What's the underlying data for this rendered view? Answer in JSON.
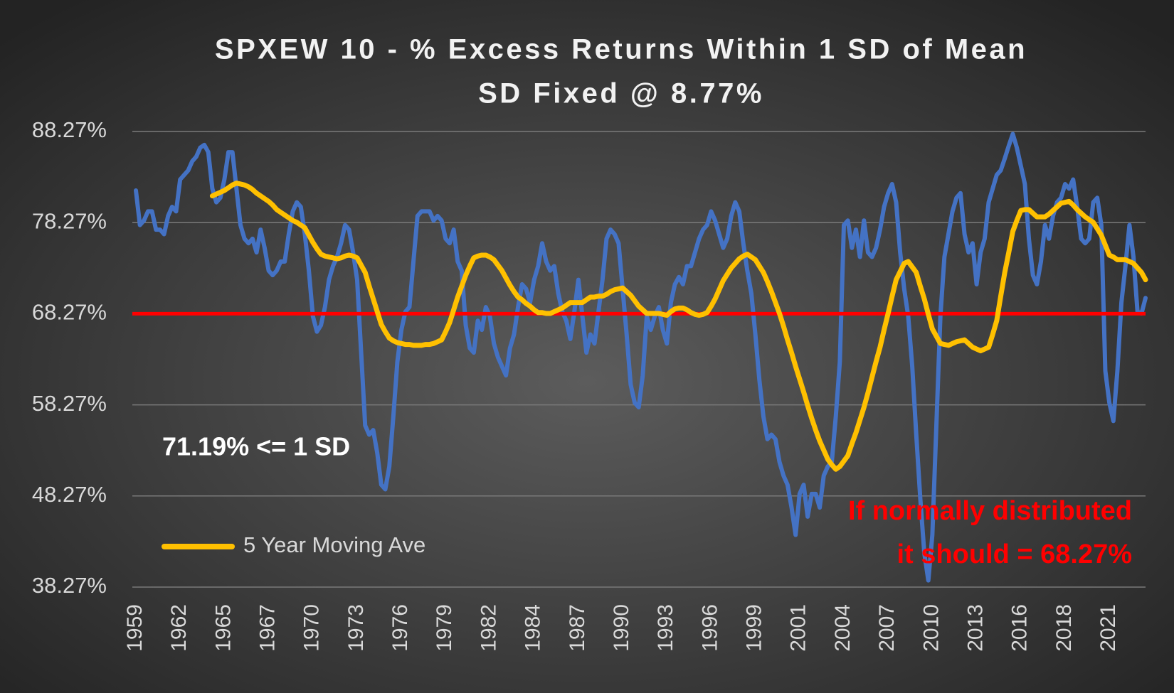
{
  "chart_data": {
    "type": "line",
    "title": "SPXEW 10 - % Excess Returns Within 1 SD of Mean",
    "subtitle": "SD Fixed @ 8.77%",
    "categories": [
      "1959",
      null,
      null,
      null,
      null,
      null,
      null,
      null,
      null,
      null,
      null,
      "1962",
      null,
      null,
      null,
      null,
      null,
      null,
      null,
      null,
      null,
      null,
      "1965",
      null,
      null,
      null,
      null,
      null,
      null,
      null,
      null,
      null,
      null,
      "1967",
      null,
      null,
      null,
      null,
      null,
      null,
      null,
      null,
      null,
      null,
      "1970",
      null,
      null,
      null,
      null,
      null,
      null,
      null,
      null,
      null,
      null,
      "1973",
      null,
      null,
      null,
      null,
      null,
      null,
      null,
      null,
      null,
      null,
      "1976",
      null,
      null,
      null,
      null,
      null,
      null,
      null,
      null,
      null,
      null,
      "1979",
      null,
      null,
      null,
      null,
      null,
      null,
      null,
      null,
      null,
      null,
      "1982",
      null,
      null,
      null,
      null,
      null,
      null,
      null,
      null,
      null,
      null,
      "1984",
      null,
      null,
      null,
      null,
      null,
      null,
      null,
      null,
      null,
      null,
      "1987",
      null,
      null,
      null,
      null,
      null,
      null,
      null,
      null,
      null,
      null,
      "1990",
      null,
      null,
      null,
      null,
      null,
      null,
      null,
      null,
      null,
      null,
      "1993",
      null,
      null,
      null,
      null,
      null,
      null,
      null,
      null,
      null,
      null,
      "1996",
      null,
      null,
      null,
      null,
      null,
      null,
      null,
      null,
      null,
      null,
      "1999",
      null,
      null,
      null,
      null,
      null,
      null,
      null,
      null,
      null,
      null,
      "2001",
      null,
      null,
      null,
      null,
      null,
      null,
      null,
      null,
      null,
      null,
      "2004",
      null,
      null,
      null,
      null,
      null,
      null,
      null,
      null,
      null,
      null,
      "2007",
      null,
      null,
      null,
      null,
      null,
      null,
      null,
      null,
      null,
      null,
      "2010",
      null,
      null,
      null,
      null,
      null,
      null,
      null,
      null,
      null,
      null,
      "2013",
      null,
      null,
      null,
      null,
      null,
      null,
      null,
      null,
      null,
      null,
      "2016",
      null,
      null,
      null,
      null,
      null,
      null,
      null,
      null,
      null,
      null,
      "2018",
      null,
      null,
      null,
      null,
      null,
      null,
      null,
      null,
      null,
      null,
      "2021",
      null,
      null,
      null,
      null,
      null,
      null,
      null,
      null,
      null
    ],
    "series": [
      {
        "color": "#4472c4",
        "values": [
          81.8,
          78,
          78.5,
          79.5,
          79.5,
          77.5,
          77.5,
          77,
          79,
          80,
          79.5,
          83,
          83.5,
          84,
          85,
          85.5,
          86.5,
          86.8,
          86,
          82,
          80.5,
          81,
          83,
          86,
          86,
          82,
          78,
          76.5,
          76,
          76.5,
          75,
          77.5,
          75.5,
          73,
          72.5,
          73,
          74,
          74,
          77,
          79.5,
          80.5,
          80,
          77,
          73,
          68,
          66.3,
          67,
          69,
          72,
          73.5,
          74.5,
          76,
          78,
          77.5,
          75,
          72,
          64,
          56,
          55,
          55.5,
          53,
          49.5,
          49,
          51.5,
          57,
          63,
          66.5,
          68.5,
          69,
          74,
          79,
          79.5,
          79.5,
          79.5,
          78.5,
          79,
          78.5,
          76.5,
          76,
          77.5,
          74,
          73,
          67,
          64.5,
          64,
          67.5,
          66.5,
          69,
          68,
          65,
          63.5,
          62.5,
          61.5,
          64.5,
          66,
          69,
          71.5,
          71,
          69.5,
          72,
          73.5,
          76,
          74,
          73,
          73.5,
          70.5,
          68.5,
          67.5,
          65.5,
          68.5,
          72,
          68,
          64,
          66,
          65,
          68.5,
          72,
          76.5,
          77.5,
          77,
          76,
          71,
          66,
          60.5,
          58.5,
          58,
          61.5,
          68,
          66.5,
          68,
          69,
          66.5,
          65,
          69.5,
          71.5,
          72.3,
          71.5,
          73.5,
          73.5,
          75,
          76.5,
          77.5,
          78,
          79.5,
          78.5,
          77,
          75.5,
          76.5,
          79,
          80.5,
          79.5,
          76,
          73,
          70.5,
          66,
          61,
          57,
          54.5,
          55,
          54.5,
          52,
          50.5,
          49.5,
          47,
          44,
          48.5,
          49.5,
          46,
          48.5,
          48.5,
          47,
          50.5,
          51.5,
          52,
          57,
          63,
          78,
          78.5,
          75.5,
          77.5,
          74.5,
          78.5,
          75,
          74.5,
          75.5,
          77.5,
          80,
          81.5,
          82.5,
          80.5,
          75,
          71,
          68,
          62.5,
          55,
          48,
          42,
          39,
          44,
          56,
          68,
          74.5,
          77,
          79.5,
          81,
          81.5,
          77,
          75,
          76,
          71.5,
          75,
          76.5,
          80.5,
          82,
          83.5,
          84,
          85.3,
          86.7,
          88,
          86.5,
          84.5,
          82.5,
          76.5,
          72.5,
          71.5,
          74,
          78,
          76.5,
          79,
          80.5,
          81,
          82.5,
          82,
          83,
          80,
          76.5,
          76,
          76.5,
          80.5,
          81,
          78,
          62,
          58.5,
          56.5,
          62,
          69.5,
          73.5,
          78,
          74.5,
          68.5,
          68.3,
          70
        ]
      },
      {
        "name": "5 Year Moving Ave",
        "color": "#ffc000",
        "values": [
          null,
          null,
          null,
          null,
          null,
          null,
          null,
          null,
          null,
          null,
          null,
          null,
          null,
          null,
          null,
          null,
          null,
          null,
          null,
          81.2,
          81.4,
          81.6,
          81.8,
          82.1,
          82.4,
          82.6,
          82.5,
          82.4,
          82.2,
          81.9,
          81.5,
          81.2,
          80.9,
          80.6,
          80.2,
          79.7,
          79.4,
          79.1,
          78.8,
          78.5,
          78.3,
          78.0,
          77.7,
          76.9,
          76.1,
          75.4,
          74.8,
          74.6,
          74.5,
          74.4,
          74.3,
          74.4,
          74.6,
          74.7,
          74.6,
          74.4,
          73.6,
          72.8,
          71.3,
          69.9,
          68.5,
          67.1,
          66.3,
          65.6,
          65.3,
          65.1,
          65.0,
          64.9,
          64.9,
          64.8,
          64.8,
          64.8,
          64.9,
          64.9,
          65.0,
          65.2,
          65.4,
          66.3,
          67.3,
          68.7,
          70.1,
          71.3,
          72.5,
          73.5,
          74.4,
          74.6,
          74.7,
          74.7,
          74.5,
          74.2,
          73.6,
          73.0,
          72.2,
          71.4,
          70.7,
          70.1,
          69.8,
          69.4,
          69.1,
          68.7,
          68.4,
          68.4,
          68.3,
          68.3,
          68.5,
          68.7,
          68.9,
          69.2,
          69.5,
          69.5,
          69.5,
          69.5,
          69.8,
          70.1,
          70.1,
          70.2,
          70.2,
          70.4,
          70.7,
          70.9,
          71.0,
          71.1,
          70.7,
          70.3,
          69.7,
          69.1,
          68.7,
          68.3,
          68.3,
          68.3,
          68.3,
          68.2,
          68.1,
          68.5,
          68.8,
          68.9,
          68.9,
          68.7,
          68.4,
          68.2,
          68.1,
          68.2,
          68.4,
          69.1,
          69.9,
          70.9,
          71.9,
          72.6,
          73.3,
          73.8,
          74.3,
          74.6,
          74.8,
          74.5,
          74.2,
          73.5,
          72.8,
          71.8,
          70.7,
          69.5,
          68.3,
          66.9,
          65.4,
          64.0,
          62.5,
          61.1,
          59.7,
          58.2,
          56.8,
          55.5,
          54.3,
          53.3,
          52.3,
          51.7,
          51.2,
          51.5,
          52.1,
          52.7,
          54.0,
          55.2,
          56.6,
          58.0,
          59.6,
          61.3,
          63.0,
          64.6,
          66.5,
          68.3,
          70.2,
          72.0,
          72.9,
          73.8,
          74.0,
          73.4,
          72.8,
          71.3,
          69.9,
          68.2,
          66.6,
          65.8,
          65.0,
          64.9,
          64.8,
          65.0,
          65.2,
          65.3,
          65.4,
          65.0,
          64.6,
          64.4,
          64.2,
          64.4,
          64.6,
          66.0,
          67.5,
          70.2,
          72.8,
          75.0,
          77.3,
          78.5,
          79.6,
          79.7,
          79.7,
          79.3,
          78.9,
          78.9,
          78.9,
          79.2,
          79.6,
          80.0,
          80.4,
          80.5,
          80.6,
          80.2,
          79.7,
          79.3,
          78.9,
          78.6,
          78.3,
          77.6,
          76.9,
          75.8,
          74.7,
          74.5,
          74.2,
          74.2,
          74.2,
          74.0,
          73.8,
          73.3,
          72.8,
          72.0
        ]
      }
    ],
    "reference_line": {
      "value": 68.27,
      "color": "#ff0000"
    },
    "annotations": [
      {
        "text": "71.19% <= 1 SD",
        "color": "#ffffff"
      },
      {
        "lines": [
          "If normally distributed",
          "it should = 68.27%"
        ],
        "color": "#ff0000"
      }
    ],
    "ylim": [
      38.27,
      88.27
    ],
    "yticks": [
      {
        "value": 38.27,
        "label": "38.27%"
      },
      {
        "value": 48.27,
        "label": "48.27%"
      },
      {
        "value": 58.27,
        "label": "58.27%"
      },
      {
        "value": 68.27,
        "label": "68.27%"
      },
      {
        "value": 78.27,
        "label": "78.27%"
      },
      {
        "value": 88.27,
        "label": "88.27%"
      }
    ],
    "grid": true,
    "legend": "lower left"
  }
}
